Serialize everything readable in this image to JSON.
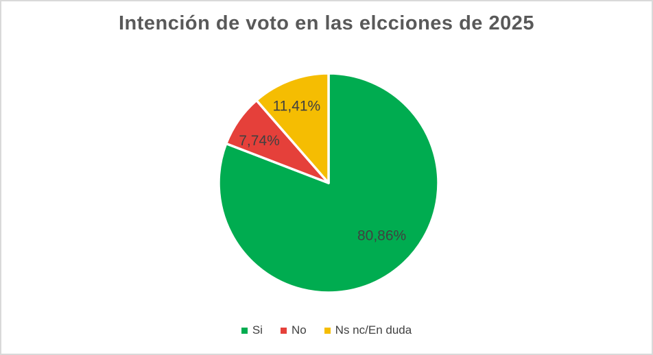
{
  "canvas": {
    "background": "#FFFFFF",
    "border_color": "#D9D9D9"
  },
  "chart_data": {
    "type": "pie",
    "title": "Intención de voto en las elcciones de 2025",
    "categories": [
      "Si",
      "No",
      "Ns nc/En duda"
    ],
    "values": [
      80.86,
      7.74,
      11.41
    ],
    "value_labels": [
      "80,86%",
      "7,74%",
      "11,41%"
    ],
    "colors": [
      "#00AC50",
      "#E5403A",
      "#F5BD02"
    ],
    "slice_border_color": "#FFFFFF",
    "start_angle_deg": 0,
    "direction": "clockwise",
    "legend_position": "bottom",
    "title_color": "#595959",
    "label_color": "#404040",
    "legend_text_color": "#404040"
  }
}
